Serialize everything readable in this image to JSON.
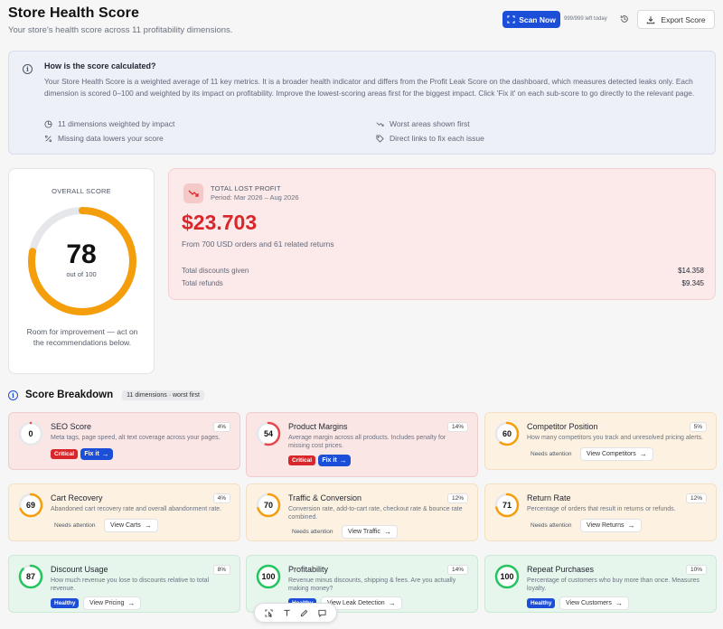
{
  "header": {
    "title": "Store Health Score",
    "subtitle": "Your store's health score across 11 profitability dimensions.",
    "scan_label": "Scan Now",
    "scans_left": "999/999 left today",
    "export_label": "Export Score"
  },
  "info": {
    "title": "How is the score calculated?",
    "body": "Your Store Health Score is a weighted average of 11 key metrics. It is a broader health indicator and differs from the Profit Leak Score on the dashboard, which measures detected leaks only. Each dimension is scored 0–100 and weighted by its impact on profitability. Improve the lowest-scoring areas first for the biggest impact. Click 'Fix it' on each sub-score to go directly to the relevant page.",
    "features": [
      "11 dimensions weighted by impact",
      "Worst areas shown first",
      "Missing data lowers your score",
      "Direct links to fix each issue"
    ]
  },
  "overall": {
    "label": "OVERALL SCORE",
    "score": "78",
    "score_value": 78,
    "out_of": "out of 100",
    "note": "Room for improvement — act on the recommendations below.",
    "ring_color": "#f59e0b"
  },
  "lost_profit": {
    "label": "TOTAL LOST PROFIT",
    "period": "Period: Mar 2026 – Aug 2026",
    "amount": "$23.703",
    "from": "From 700 USD orders and 61 related returns",
    "rows": [
      {
        "label": "Total discounts given",
        "value": "$14.358"
      },
      {
        "label": "Total refunds",
        "value": "$9.345"
      }
    ]
  },
  "breakdown": {
    "title": "Score Breakdown",
    "badge": "11 dimensions · worst first",
    "cards": [
      {
        "score": "0",
        "value": 0,
        "title": "SEO Score",
        "pct": "4%",
        "desc": "Meta tags, page speed, alt text coverage across your pages.",
        "status": "Critical",
        "action": "Fix it",
        "tone": "red"
      },
      {
        "score": "54",
        "value": 54,
        "title": "Product Margins",
        "pct": "14%",
        "desc": "Average margin across all products. Includes penalty for missing cost prices.",
        "status": "Critical",
        "action": "Fix it",
        "tone": "red"
      },
      {
        "score": "60",
        "value": 60,
        "title": "Competitor Position",
        "pct": "5%",
        "desc": "How many competitors you track and unresolved pricing alerts.",
        "status": "Needs attention",
        "action": "View Competitors",
        "tone": "orange"
      },
      {
        "score": "69",
        "value": 69,
        "title": "Cart Recovery",
        "pct": "4%",
        "desc": "Abandoned cart recovery rate and overall abandonment rate.",
        "status": "Needs attention",
        "action": "View Carts",
        "tone": "orange"
      },
      {
        "score": "70",
        "value": 70,
        "title": "Traffic & Conversion",
        "pct": "12%",
        "desc": "Conversion rate, add-to-cart rate, checkout rate & bounce rate combined.",
        "status": "Needs attention",
        "action": "View Traffic",
        "tone": "orange"
      },
      {
        "score": "71",
        "value": 71,
        "title": "Return Rate",
        "pct": "12%",
        "desc": "Percentage of orders that result in returns or refunds.",
        "status": "Needs attention",
        "action": "View Returns",
        "tone": "orange"
      },
      {
        "score": "87",
        "value": 87,
        "title": "Discount Usage",
        "pct": "8%",
        "desc": "How much revenue you lose to discounts relative to total revenue.",
        "status": "Healthy",
        "action": "View Pricing",
        "tone": "green"
      },
      {
        "score": "100",
        "value": 100,
        "title": "Profitability",
        "pct": "14%",
        "desc": "Revenue minus discounts, shipping & fees. Are you actually making money?",
        "status": "Healthy",
        "action": "View Leak Detection",
        "tone": "green"
      },
      {
        "score": "100",
        "value": 100,
        "title": "Repeat Purchases",
        "pct": "10%",
        "desc": "Percentage of customers who buy more than once. Measures loyalty.",
        "status": "Healthy",
        "action": "View Customers",
        "tone": "green"
      }
    ]
  },
  "colors": {
    "red": "#e5484d",
    "orange": "#f59e0b",
    "green": "#22c55e",
    "primary": "#1d4ed8"
  }
}
